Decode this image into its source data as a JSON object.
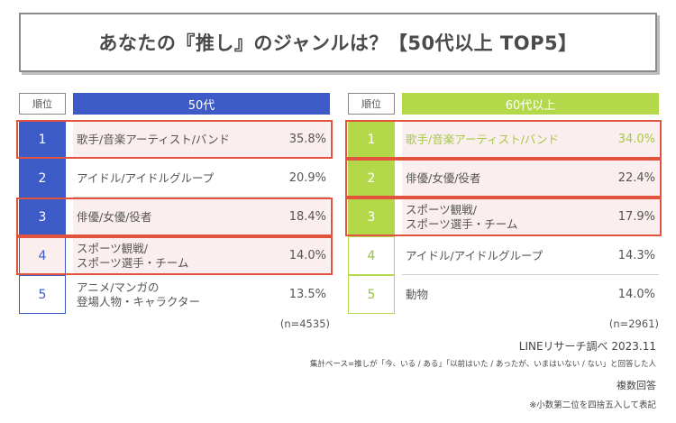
{
  "title": "あなたの『推し』のジャンルは？【50代以上 TOP5】",
  "rank_header": "順位",
  "chart_data": [
    {
      "type": "table",
      "group": "50代",
      "rows": [
        {
          "rank": "1",
          "label": "歌手/音楽アーティスト/バンド",
          "value": 35.8,
          "value_text": "35.8%",
          "highlighted": true
        },
        {
          "rank": "2",
          "label": "アイドル/アイドルグループ",
          "value": 20.9,
          "value_text": "20.9%",
          "highlighted": false
        },
        {
          "rank": "3",
          "label": "俳優/女優/役者",
          "value": 18.4,
          "value_text": "18.4%",
          "highlighted": true
        },
        {
          "rank": "4",
          "label": "スポーツ観戦/\nスポーツ選手・チーム",
          "value": 14.0,
          "value_text": "14.0%",
          "highlighted": true
        },
        {
          "rank": "5",
          "label": "アニメ/マンガの\n登場人物・キャラクター",
          "value": 13.5,
          "value_text": "13.5%",
          "highlighted": false
        }
      ],
      "n": "(n=4535)",
      "color": "#3c5bc6"
    },
    {
      "type": "table",
      "group": "60代以上",
      "rows": [
        {
          "rank": "1",
          "label": "歌手/音楽アーティスト/バンド",
          "value": 34.0,
          "value_text": "34.0%",
          "highlighted": true
        },
        {
          "rank": "2",
          "label": "俳優/女優/役者",
          "value": 22.4,
          "value_text": "22.4%",
          "highlighted": true
        },
        {
          "rank": "3",
          "label": "スポーツ観戦/\nスポーツ選手・チーム",
          "value": 17.9,
          "value_text": "17.9%",
          "highlighted": true
        },
        {
          "rank": "4",
          "label": "アイドル/アイドルグループ",
          "value": 14.3,
          "value_text": "14.3%",
          "highlighted": false
        },
        {
          "rank": "5",
          "label": "動物",
          "value": 14.0,
          "value_text": "14.0%",
          "highlighted": false
        }
      ],
      "n": "(n=2961)",
      "color": "#b3d94a"
    }
  ],
  "footer": {
    "source": "LINEリサーチ調べ 2023.11",
    "base": "集計ベース=推しが「今、いる / ある」「以前はいた / あったが、いまはいない / ない」と回答した人",
    "multiple": "複数回答",
    "rounding": "※小数第二位を四捨五入して表記"
  },
  "colors": {
    "highlight_border": "#e2533d",
    "highlight_fill": "#fbeeee"
  }
}
